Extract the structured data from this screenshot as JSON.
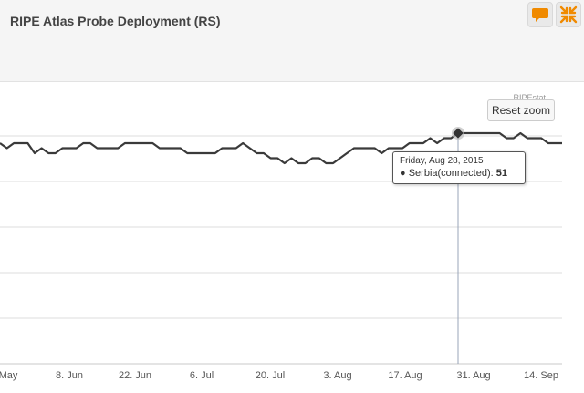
{
  "header": {
    "title": "RIPE Atlas Probe Deployment (RS)",
    "buttons": [
      {
        "icon": "speech-bubble-icon",
        "color": "#f08a00"
      },
      {
        "icon": "compress-arrows-icon",
        "color": "#f08a00"
      }
    ]
  },
  "chart": {
    "credit": "RIPEstat",
    "reset_zoom_label": "Reset zoom",
    "tooltip": {
      "date": "Friday, Aug 28, 2015",
      "series": "Serbia(connected)",
      "value": "51"
    }
  },
  "chart_data": {
    "type": "line",
    "series": [
      {
        "name": "Serbia(connected)",
        "color": "#3a3a3a",
        "values": [
          49,
          48,
          49,
          49,
          49,
          47,
          48,
          47,
          47,
          48,
          48,
          48,
          49,
          49,
          48,
          48,
          48,
          48,
          49,
          49,
          49,
          49,
          49,
          48,
          48,
          48,
          48,
          47,
          47,
          47,
          47,
          47,
          48,
          48,
          48,
          49,
          48,
          47,
          47,
          46,
          46,
          45,
          46,
          45,
          45,
          46,
          46,
          45,
          45,
          46,
          47,
          48,
          48,
          48,
          48,
          47,
          48,
          48,
          48,
          49,
          49,
          49,
          50,
          49,
          50,
          50,
          51,
          51,
          51,
          51,
          51,
          51,
          51,
          50,
          50,
          51,
          50,
          50,
          50,
          49,
          49,
          49
        ]
      }
    ],
    "x_ticks": [
      "May",
      "8. Jun",
      "22. Jun",
      "6. Jul",
      "20. Jul",
      "3. Aug",
      "17. Aug",
      "31. Aug",
      "14. Sep"
    ],
    "grid": true,
    "legend": "none",
    "highlight": {
      "date": "Friday, Aug 28, 2015",
      "value": 51
    }
  }
}
